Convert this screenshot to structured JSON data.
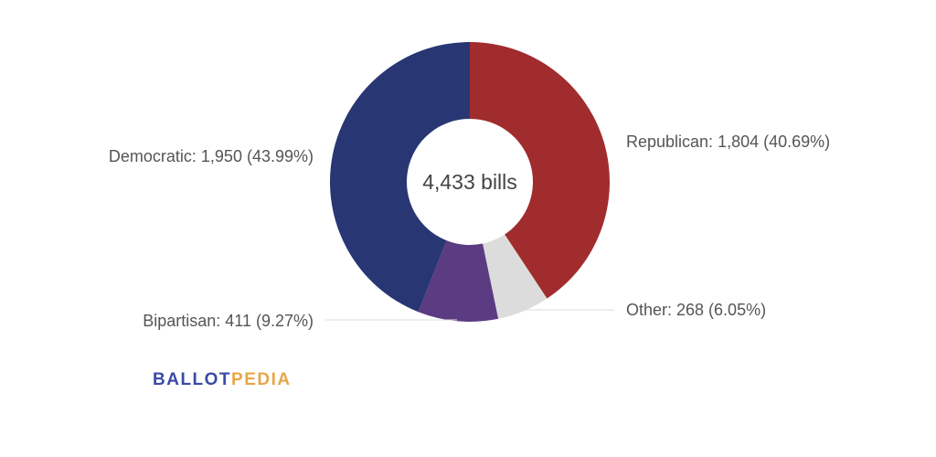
{
  "chart_data": {
    "type": "pie",
    "variant": "donut",
    "center_label": "4,433 bills",
    "total": 4433,
    "slices": [
      {
        "name": "Republican",
        "value": 1804,
        "percent": 40.69,
        "label": "Republican: 1,804 (40.69%)",
        "color": "#a02c2e"
      },
      {
        "name": "Other",
        "value": 268,
        "percent": 6.05,
        "label": "Other: 268 (6.05%)",
        "color": "#dcdcdc"
      },
      {
        "name": "Bipartisan",
        "value": 411,
        "percent": 9.27,
        "label": "Bipartisan: 411 (9.27%)",
        "color": "#5b3b82"
      },
      {
        "name": "Democratic",
        "value": 1950,
        "percent": 43.99,
        "label": "Democratic: 1,950 (43.99%)",
        "color": "#283673"
      }
    ]
  },
  "logo": {
    "part1": "BALLOT",
    "part2": "PEDIA"
  }
}
